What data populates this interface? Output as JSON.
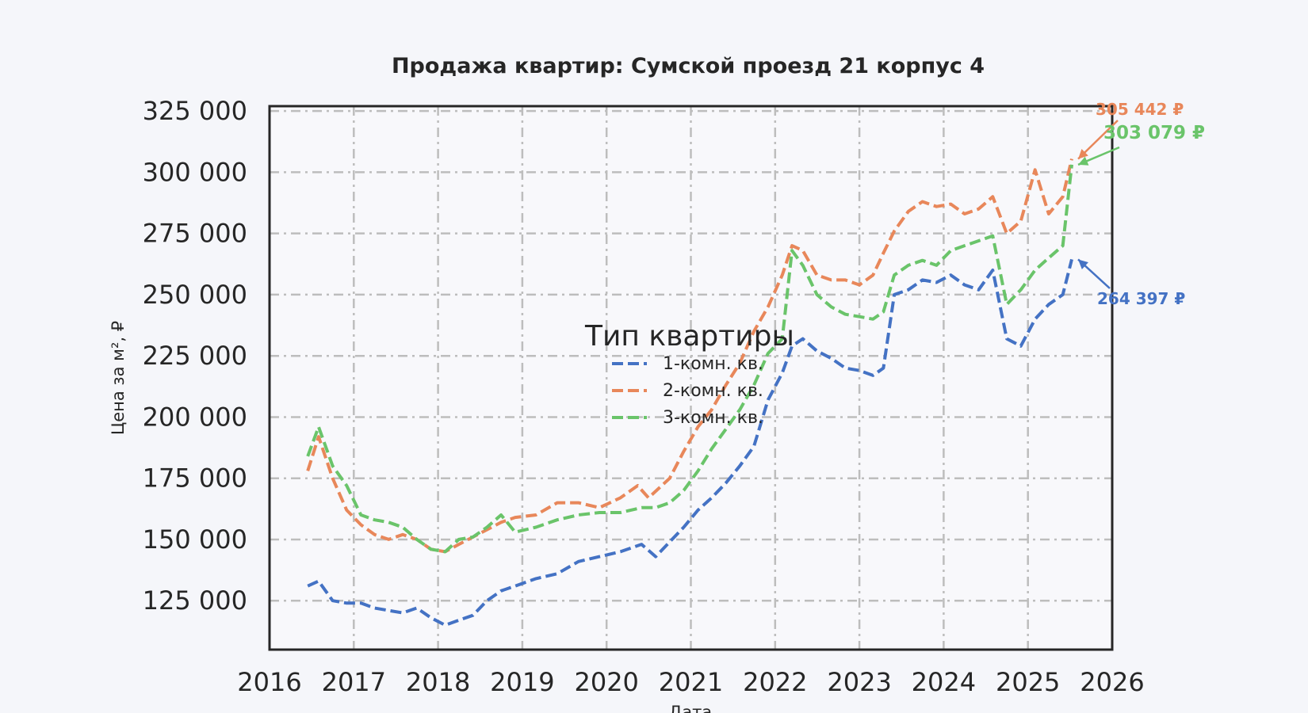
{
  "chart_data": {
    "type": "line",
    "title": "Продажа квартир: Сумской проезд 21 корпус 4",
    "xlabel": "Дата",
    "ylabel": "Цена за м², ₽",
    "xlim": [
      2016,
      2026
    ],
    "ylim": [
      105000,
      327000
    ],
    "x_ticks": [
      "2016",
      "2017",
      "2018",
      "2019",
      "2020",
      "2021",
      "2022",
      "2023",
      "2024",
      "2025",
      "2026"
    ],
    "y_ticks": [
      125000,
      150000,
      175000,
      200000,
      225000,
      250000,
      275000,
      300000,
      325000
    ],
    "y_tick_labels": [
      "125 000",
      "150 000",
      "175 000",
      "200 000",
      "225 000",
      "250 000",
      "275 000",
      "300 000",
      "325 000"
    ],
    "grid": true,
    "legend": {
      "title": "Тип квартиры",
      "placement": "center"
    },
    "series": [
      {
        "name": "1-комн. кв.",
        "color": "#4472c4",
        "points": [
          [
            "2016-06-15",
            131000
          ],
          [
            "2016-08-01",
            133000
          ],
          [
            "2016-10-01",
            125000
          ],
          [
            "2016-12-01",
            124000
          ],
          [
            "2017-02-01",
            124000
          ],
          [
            "2017-04-01",
            122000
          ],
          [
            "2017-06-01",
            121000
          ],
          [
            "2017-08-01",
            120000
          ],
          [
            "2017-10-01",
            122000
          ],
          [
            "2017-12-01",
            118000
          ],
          [
            "2018-02-01",
            115000
          ],
          [
            "2018-04-01",
            117000
          ],
          [
            "2018-06-01",
            119000
          ],
          [
            "2018-08-01",
            125000
          ],
          [
            "2018-10-01",
            129000
          ],
          [
            "2018-12-01",
            131000
          ],
          [
            "2019-03-01",
            134000
          ],
          [
            "2019-06-01",
            136000
          ],
          [
            "2019-09-01",
            141000
          ],
          [
            "2019-12-01",
            143000
          ],
          [
            "2020-03-01",
            145000
          ],
          [
            "2020-06-01",
            148000
          ],
          [
            "2020-08-01",
            143000
          ],
          [
            "2020-10-01",
            149000
          ],
          [
            "2020-12-01",
            155000
          ],
          [
            "2021-02-01",
            162000
          ],
          [
            "2021-04-01",
            167000
          ],
          [
            "2021-06-01",
            173000
          ],
          [
            "2021-08-01",
            180000
          ],
          [
            "2021-10-01",
            188000
          ],
          [
            "2021-12-01",
            207000
          ],
          [
            "2022-02-01",
            218000
          ],
          [
            "2022-03-15",
            229000
          ],
          [
            "2022-05-01",
            232000
          ],
          [
            "2022-07-01",
            227000
          ],
          [
            "2022-09-01",
            224000
          ],
          [
            "2022-11-01",
            220000
          ],
          [
            "2023-01-01",
            219000
          ],
          [
            "2023-03-01",
            217000
          ],
          [
            "2023-04-15",
            220000
          ],
          [
            "2023-06-01",
            250000
          ],
          [
            "2023-08-01",
            252000
          ],
          [
            "2023-10-01",
            256000
          ],
          [
            "2023-12-01",
            255000
          ],
          [
            "2024-02-01",
            258000
          ],
          [
            "2024-04-01",
            254000
          ],
          [
            "2024-06-01",
            252000
          ],
          [
            "2024-08-01",
            260000
          ],
          [
            "2024-10-01",
            232000
          ],
          [
            "2024-12-01",
            229000
          ],
          [
            "2025-02-01",
            240000
          ],
          [
            "2025-04-01",
            246000
          ],
          [
            "2025-06-01",
            250000
          ],
          [
            "2025-07-10",
            264397
          ]
        ]
      },
      {
        "name": "2-комн. кв.",
        "color": "#e8875a",
        "points": [
          [
            "2016-06-15",
            178000
          ],
          [
            "2016-08-01",
            192000
          ],
          [
            "2016-10-01",
            175000
          ],
          [
            "2016-12-01",
            162000
          ],
          [
            "2017-02-01",
            156000
          ],
          [
            "2017-04-01",
            152000
          ],
          [
            "2017-06-01",
            150000
          ],
          [
            "2017-08-01",
            152000
          ],
          [
            "2017-10-01",
            150000
          ],
          [
            "2017-12-01",
            146000
          ],
          [
            "2018-02-01",
            145000
          ],
          [
            "2018-04-01",
            148000
          ],
          [
            "2018-06-01",
            151000
          ],
          [
            "2018-08-01",
            154000
          ],
          [
            "2018-10-01",
            157000
          ],
          [
            "2018-12-01",
            159000
          ],
          [
            "2019-03-01",
            160000
          ],
          [
            "2019-06-01",
            165000
          ],
          [
            "2019-09-01",
            165000
          ],
          [
            "2019-12-01",
            163000
          ],
          [
            "2020-03-01",
            167000
          ],
          [
            "2020-05-15",
            172000
          ],
          [
            "2020-07-01",
            167000
          ],
          [
            "2020-10-01",
            175000
          ],
          [
            "2020-12-01",
            186000
          ],
          [
            "2021-02-01",
            196000
          ],
          [
            "2021-04-01",
            203000
          ],
          [
            "2021-06-01",
            213000
          ],
          [
            "2021-08-01",
            222000
          ],
          [
            "2021-10-01",
            235000
          ],
          [
            "2021-12-01",
            245000
          ],
          [
            "2022-02-01",
            258000
          ],
          [
            "2022-03-15",
            270000
          ],
          [
            "2022-05-01",
            268000
          ],
          [
            "2022-07-01",
            258000
          ],
          [
            "2022-09-01",
            256000
          ],
          [
            "2022-11-01",
            256000
          ],
          [
            "2023-01-01",
            254000
          ],
          [
            "2023-03-01",
            258000
          ],
          [
            "2023-04-15",
            267000
          ],
          [
            "2023-06-01",
            276000
          ],
          [
            "2023-08-01",
            284000
          ],
          [
            "2023-10-01",
            288000
          ],
          [
            "2023-12-01",
            286000
          ],
          [
            "2024-02-01",
            287000
          ],
          [
            "2024-04-01",
            283000
          ],
          [
            "2024-06-01",
            285000
          ],
          [
            "2024-08-01",
            290000
          ],
          [
            "2024-10-01",
            275000
          ],
          [
            "2024-12-01",
            280000
          ],
          [
            "2025-02-01",
            301000
          ],
          [
            "2025-04-01",
            283000
          ],
          [
            "2025-06-01",
            290000
          ],
          [
            "2025-07-10",
            305442
          ]
        ]
      },
      {
        "name": "3-комн. кв.",
        "color": "#6ac46a",
        "points": [
          [
            "2016-06-15",
            184000
          ],
          [
            "2016-08-01",
            196000
          ],
          [
            "2016-10-01",
            180000
          ],
          [
            "2016-12-01",
            172000
          ],
          [
            "2017-02-01",
            160000
          ],
          [
            "2017-04-01",
            158000
          ],
          [
            "2017-06-01",
            157000
          ],
          [
            "2017-08-01",
            155000
          ],
          [
            "2017-10-01",
            150000
          ],
          [
            "2017-12-01",
            146000
          ],
          [
            "2018-02-01",
            145000
          ],
          [
            "2018-04-01",
            150000
          ],
          [
            "2018-06-01",
            151000
          ],
          [
            "2018-08-01",
            155000
          ],
          [
            "2018-10-01",
            160000
          ],
          [
            "2018-12-01",
            153000
          ],
          [
            "2019-03-01",
            155000
          ],
          [
            "2019-06-01",
            158000
          ],
          [
            "2019-09-01",
            160000
          ],
          [
            "2019-12-01",
            161000
          ],
          [
            "2020-03-01",
            161000
          ],
          [
            "2020-06-01",
            163000
          ],
          [
            "2020-08-01",
            163000
          ],
          [
            "2020-10-01",
            165000
          ],
          [
            "2020-12-01",
            170000
          ],
          [
            "2021-02-01",
            178000
          ],
          [
            "2021-04-01",
            187000
          ],
          [
            "2021-06-01",
            195000
          ],
          [
            "2021-08-01",
            203000
          ],
          [
            "2021-10-01",
            213000
          ],
          [
            "2021-12-01",
            226000
          ],
          [
            "2022-02-01",
            232000
          ],
          [
            "2022-03-15",
            268000
          ],
          [
            "2022-05-01",
            262000
          ],
          [
            "2022-07-01",
            250000
          ],
          [
            "2022-09-01",
            245000
          ],
          [
            "2022-11-01",
            242000
          ],
          [
            "2023-01-01",
            241000
          ],
          [
            "2023-03-01",
            240000
          ],
          [
            "2023-04-15",
            243000
          ],
          [
            "2023-06-01",
            258000
          ],
          [
            "2023-08-01",
            262000
          ],
          [
            "2023-10-01",
            264000
          ],
          [
            "2023-12-01",
            262000
          ],
          [
            "2024-02-01",
            268000
          ],
          [
            "2024-04-01",
            270000
          ],
          [
            "2024-06-01",
            272000
          ],
          [
            "2024-08-01",
            274000
          ],
          [
            "2024-10-01",
            246000
          ],
          [
            "2024-12-01",
            252000
          ],
          [
            "2025-02-01",
            260000
          ],
          [
            "2025-04-01",
            265000
          ],
          [
            "2025-06-01",
            270000
          ],
          [
            "2025-07-10",
            303079
          ]
        ]
      }
    ],
    "annotations": [
      {
        "series": 1,
        "text": "305 442 ₽",
        "color": "#e8875a"
      },
      {
        "series": 2,
        "text": "303 079 ₽",
        "color": "#6ac46a"
      },
      {
        "series": 0,
        "text": "264 397 ₽",
        "color": "#4472c4"
      }
    ]
  }
}
